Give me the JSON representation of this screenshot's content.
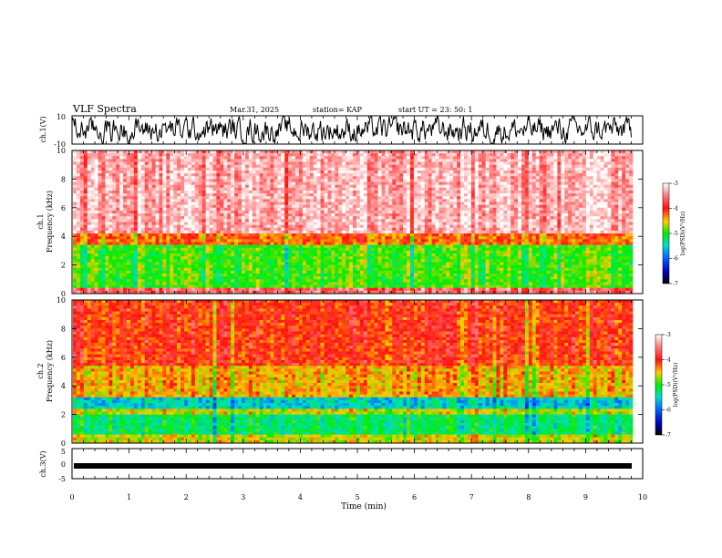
{
  "header": {
    "title": "VLF Spectra",
    "date": "Mar.31, 2025",
    "station": "station= KAP",
    "start": "start  UT  =   23: 50: 1"
  },
  "chart_data": [
    {
      "type": "line",
      "ylabel": "ch.1(V)",
      "ylim": [
        -10,
        10
      ],
      "yticks": [
        "10",
        "-10"
      ],
      "xlim": [
        0,
        10
      ],
      "note": "noisy waveform amplitude roughly between -10 and +10 V"
    },
    {
      "type": "heatmap",
      "ylabel": "ch.1\nFrequency (kHz)",
      "ylabel_lines": [
        "ch.1",
        "Frequency  (kHz)"
      ],
      "ylim": [
        0,
        10
      ],
      "yticks": [
        "0",
        "2",
        "4",
        "6",
        "8",
        "10"
      ],
      "xlim": [
        0,
        10
      ],
      "colorbar": {
        "label": "log(PSD)(V²/Hz)",
        "range": [
          -7,
          -3
        ],
        "ticks": [
          "-3",
          "-4",
          "-5",
          "-6",
          "-7"
        ]
      },
      "bands": [
        {
          "from": 0.0,
          "to": 0.5,
          "level": -3.6
        },
        {
          "from": 0.5,
          "to": 3.4,
          "level": -4.9
        },
        {
          "from": 3.4,
          "to": 4.2,
          "level": -4.2
        },
        {
          "from": 4.2,
          "to": 10.0,
          "level": -3.3
        }
      ]
    },
    {
      "type": "heatmap",
      "ylabel": "ch.2\nFrequency (kHz)",
      "ylabel_lines": [
        "ch.2",
        "Frequency  (kHz)"
      ],
      "ylim": [
        0,
        10
      ],
      "yticks": [
        "0",
        "2",
        "4",
        "6",
        "8",
        "10"
      ],
      "xlim": [
        0,
        10
      ],
      "colorbar": {
        "label": "log(PSD)(V²/Hz)",
        "range": [
          -7,
          -3
        ],
        "ticks": [
          "-3",
          "-4",
          "-5",
          "-6",
          "-7"
        ]
      },
      "bands": [
        {
          "from": 0.0,
          "to": 0.6,
          "level": -4.6
        },
        {
          "from": 0.6,
          "to": 2.0,
          "level": -5.2
        },
        {
          "from": 2.0,
          "to": 2.4,
          "level": -4.6
        },
        {
          "from": 2.4,
          "to": 3.2,
          "level": -5.5
        },
        {
          "from": 3.2,
          "to": 5.5,
          "level": -4.4
        },
        {
          "from": 5.5,
          "to": 10.0,
          "level": -4.0
        }
      ]
    },
    {
      "type": "line",
      "ylabel": "ch.3(V)",
      "ylim": [
        -5,
        5
      ],
      "yticks": [
        "5",
        "0",
        "-5"
      ],
      "xlim": [
        0,
        10
      ],
      "xticks": [
        "0",
        "1",
        "2",
        "3",
        "4",
        "5",
        "6",
        "7",
        "8",
        "9",
        "10"
      ],
      "xlabel": "Time  (min)",
      "note": "thick near-constant trace at about -1 V"
    }
  ]
}
